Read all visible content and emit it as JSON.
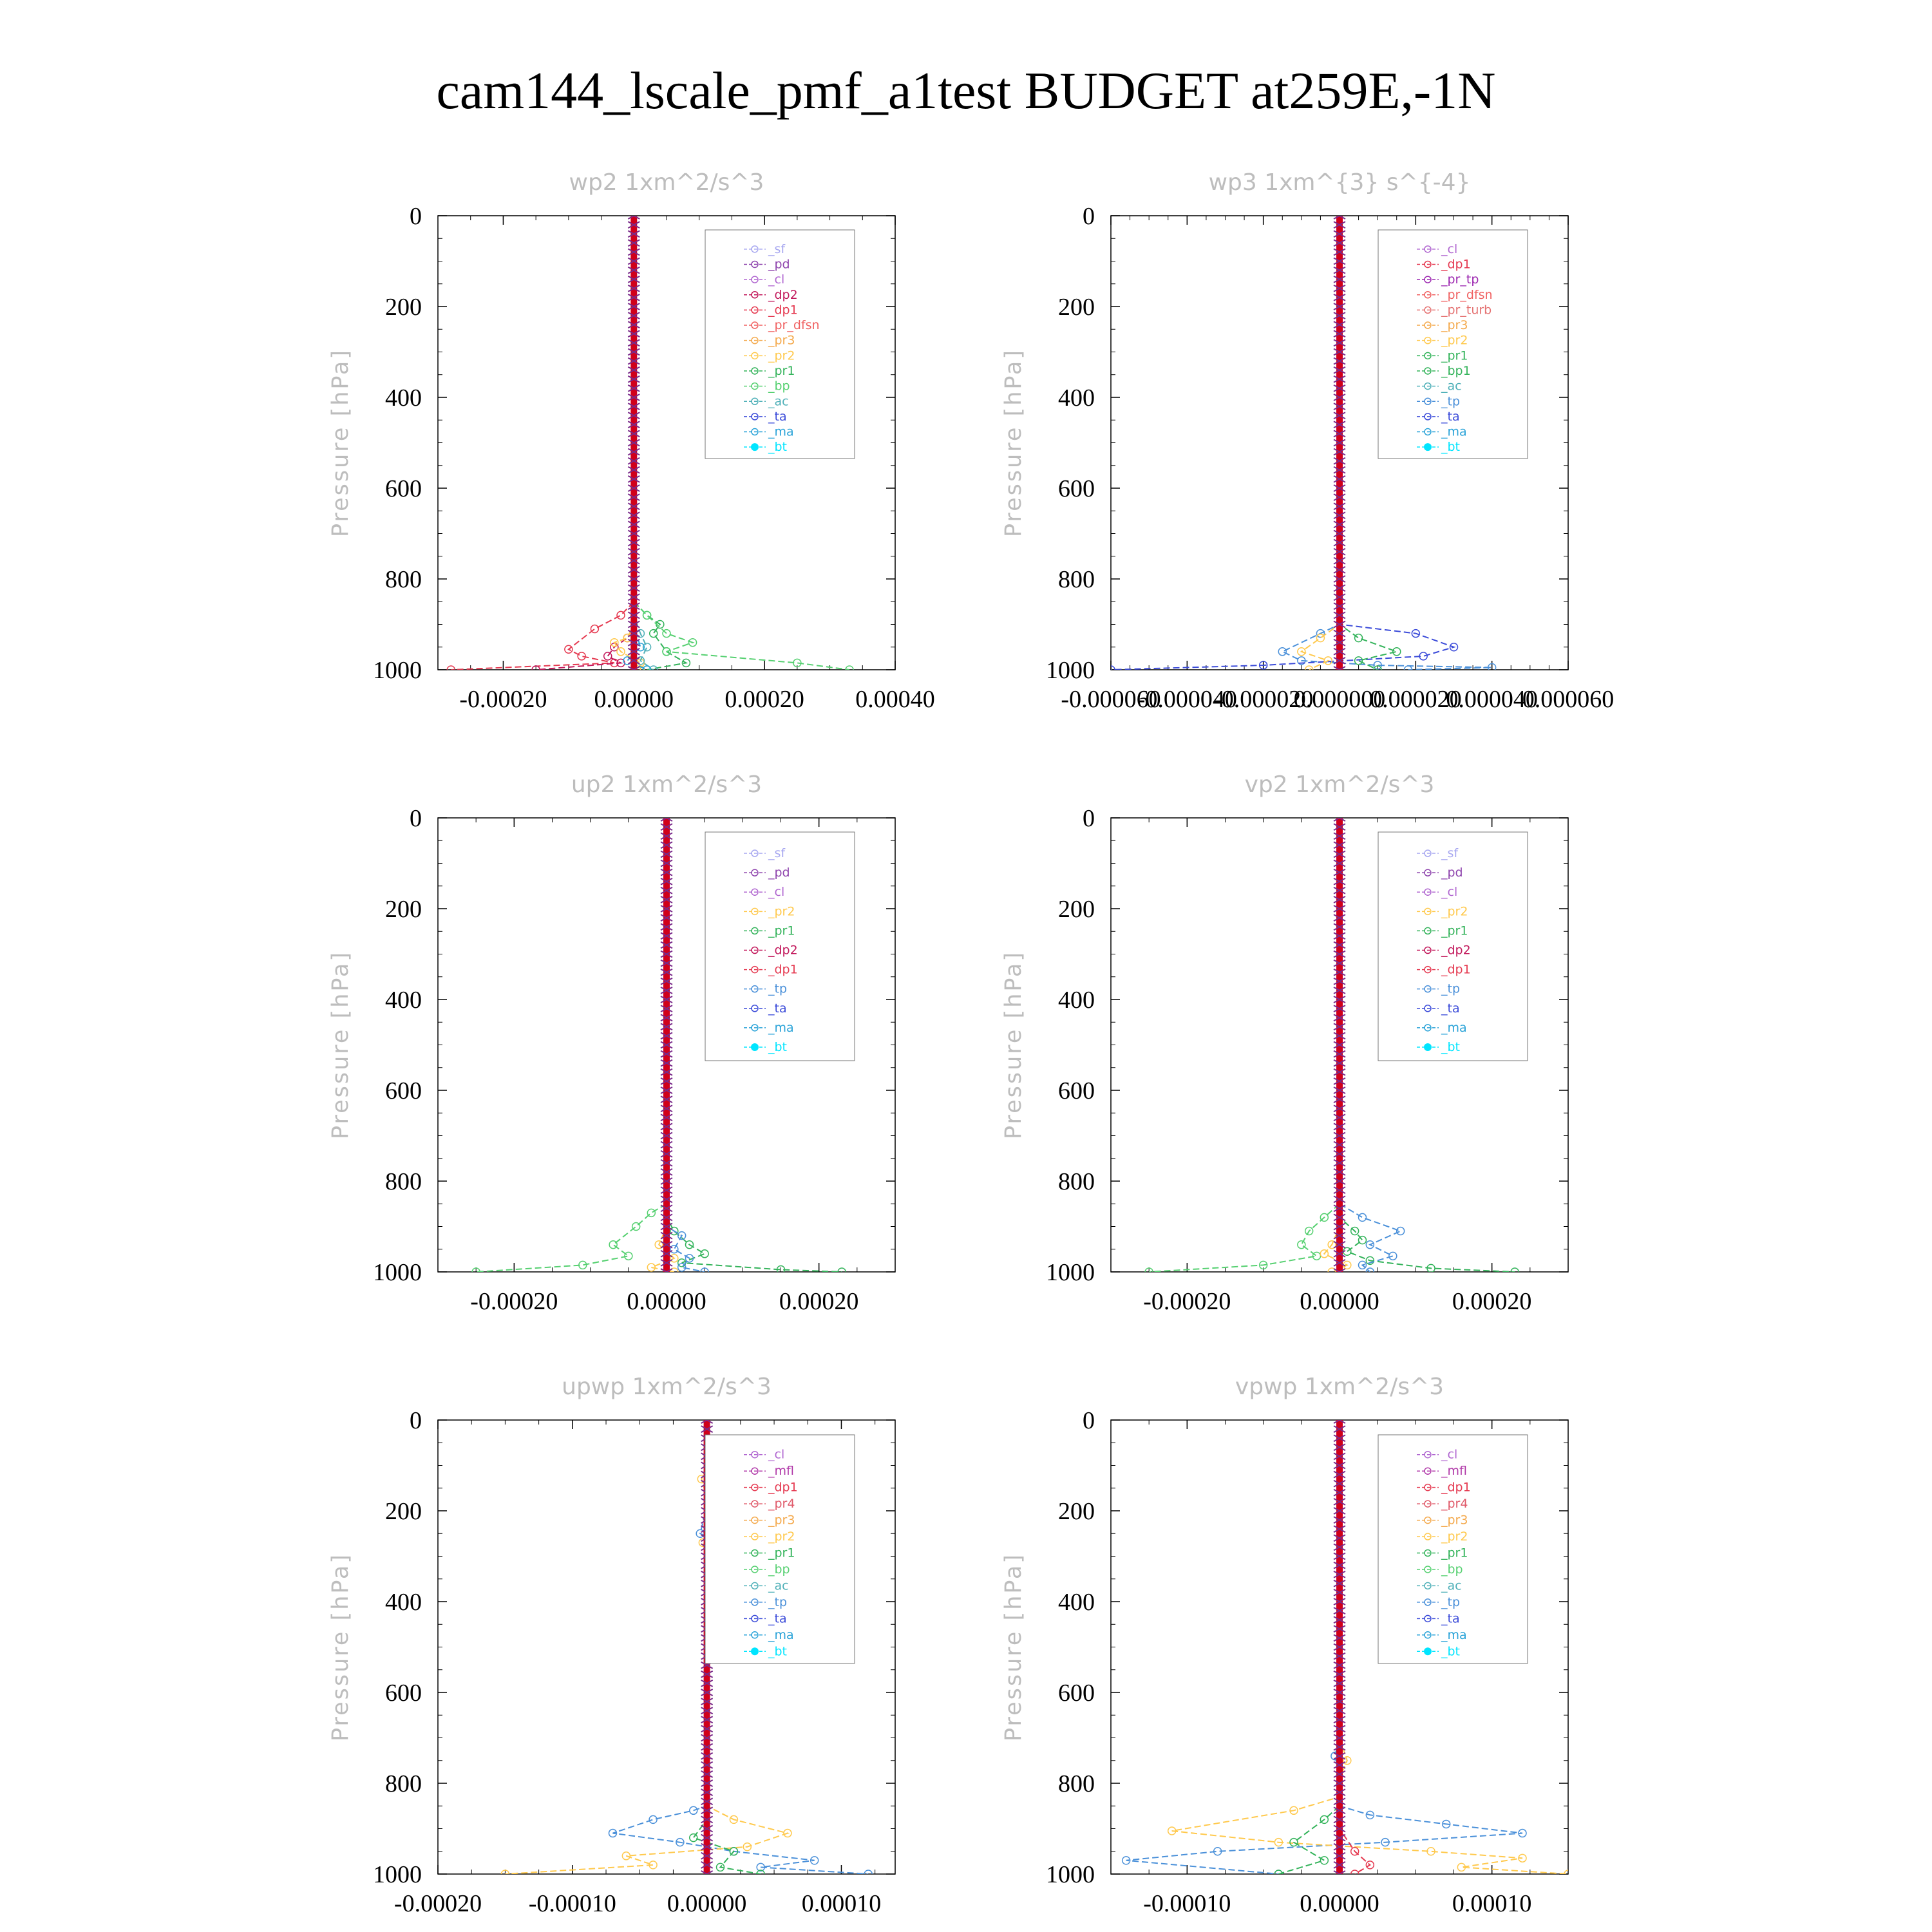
{
  "title": "cam144_lscale_pmf_a1test  BUDGET at259E,-1N",
  "ylabel": "Pressure [hPa]",
  "colors": {
    "sf": "#a7a7f0",
    "pd": "#8e44ad",
    "cl": "#b066d0",
    "mfl": "#b038a8",
    "dp2": "#c2185b",
    "dp1": "#e53950",
    "pr_dfsn": "#f06262",
    "pr_tp": "#9c27b0",
    "pr_turb": "#e57373",
    "pr4": "#e05a6a",
    "pr3": "#f4a94c",
    "pr2": "#ffc94d",
    "pr1": "#33b35a",
    "bp": "#55d070",
    "bp1": "#33b35a",
    "ac": "#4fb0b8",
    "tp": "#4a90d9",
    "ta": "#3b4bd9",
    "ma": "#2aa3d8",
    "bt": "#00e5ff",
    "red": "#d0001b",
    "axis": "#000000",
    "title_gray": "#bdbdbd"
  },
  "chart_data": [
    {
      "type": "line",
      "title": "wp2   1xm^2/s^3",
      "xlim": [
        -0.0003,
        0.0004
      ],
      "xticks": [
        -0.0002,
        0.0,
        0.0002,
        0.0004
      ],
      "xtick_labels": [
        "-0.00020",
        "0.00000",
        "0.00020",
        "0.00040"
      ],
      "ylim": [
        0,
        1000
      ],
      "yticks": [
        0,
        200,
        400,
        600,
        800,
        1000
      ],
      "ytick_labels": [
        "0",
        "200",
        "400",
        "600",
        "800",
        "1000"
      ],
      "legend": [
        "_sf",
        "_pd",
        "_cl",
        "_dp2",
        "_dp1",
        "_pr_dfsn",
        "_pr3",
        "_pr2",
        "_pr1",
        "_bp",
        "_ac",
        "_ta",
        "_ma",
        "_bt"
      ],
      "series": [
        {
          "name": "_dp1",
          "color_key": "dp1",
          "x": [
            0,
            0,
            -2e-05,
            -6e-05,
            -0.0001,
            -8e-05,
            -3e-05,
            -0.00028
          ],
          "y": [
            0,
            850,
            880,
            910,
            955,
            970,
            985,
            1000
          ]
        },
        {
          "name": "_dp2",
          "color_key": "dp2",
          "x": [
            0,
            0,
            -1e-05,
            -3e-05,
            -4e-05,
            -2e-05,
            -0.00015
          ],
          "y": [
            0,
            900,
            930,
            950,
            970,
            985,
            1000
          ]
        },
        {
          "name": "_pr2",
          "color_key": "pr2",
          "x": [
            0,
            0,
            -1e-05,
            -3e-05,
            -2e-05,
            1e-05,
            1e-05
          ],
          "y": [
            0,
            900,
            930,
            940,
            960,
            985,
            1000
          ]
        },
        {
          "name": "_pr1",
          "color_key": "pr1",
          "x": [
            0,
            0,
            2e-05,
            4e-05,
            3e-05,
            5e-05,
            8e-05,
            2e-05
          ],
          "y": [
            0,
            850,
            880,
            900,
            920,
            960,
            985,
            1000
          ]
        },
        {
          "name": "_bp",
          "color_key": "bp",
          "x": [
            0,
            0,
            2e-05,
            5e-05,
            9e-05,
            5e-05,
            0.00025,
            0.00033
          ],
          "y": [
            0,
            850,
            880,
            920,
            940,
            960,
            985,
            1000
          ]
        },
        {
          "name": "_ac",
          "color_key": "ac",
          "x": [
            0,
            0,
            1e-05,
            2e-05,
            1e-05,
            3e-05
          ],
          "y": [
            0,
            880,
            920,
            950,
            980,
            1000
          ]
        },
        {
          "name": "_ma",
          "color_key": "ma",
          "x": [
            0,
            0,
            1e-05,
            -1e-05,
            2e-05
          ],
          "y": [
            0,
            900,
            950,
            980,
            1000
          ]
        },
        {
          "name": "_bt",
          "color_key": "red",
          "x": [
            0,
            0
          ],
          "y": [
            0,
            1000
          ]
        }
      ]
    },
    {
      "type": "line",
      "title": "wp3   1xm^{3} s^{-4}",
      "xlim": [
        -6e-05,
        6e-05
      ],
      "xticks": [
        -6e-05,
        -4e-05,
        -2e-05,
        0.0,
        2e-05,
        4e-05,
        6e-05
      ],
      "xtick_labels": [
        "-0.000060",
        "-0.000040",
        "-0.000020",
        "0.000000",
        "0.000020",
        "0.000040",
        "0.000060"
      ],
      "ylim": [
        0,
        1000
      ],
      "yticks": [
        0,
        200,
        400,
        600,
        800,
        1000
      ],
      "ytick_labels": [
        "0",
        "200",
        "400",
        "600",
        "800",
        "1000"
      ],
      "legend": [
        "_cl",
        "_dp1",
        "_pr_tp",
        "_pr_dfsn",
        "_pr_turb",
        "_pr3",
        "_pr2",
        "_pr1",
        "_bp1",
        "_ac",
        "_tp",
        "_ta",
        "_ma",
        "_bt"
      ],
      "series": [
        {
          "name": "_tp",
          "color_key": "tp",
          "x": [
            0,
            0,
            -5e-06,
            -1.5e-05,
            -1e-05,
            1e-05,
            4e-05,
            1.8e-05
          ],
          "y": [
            0,
            900,
            920,
            960,
            980,
            990,
            995,
            1000
          ]
        },
        {
          "name": "_ta",
          "color_key": "ta",
          "x": [
            0,
            0,
            2e-05,
            3e-05,
            2.2e-05,
            -2e-05,
            -6e-05
          ],
          "y": [
            0,
            900,
            920,
            950,
            970,
            990,
            1000
          ]
        },
        {
          "name": "_pr1",
          "color_key": "pr1",
          "x": [
            0,
            0,
            5e-06,
            1.5e-05,
            5e-06,
            1e-05
          ],
          "y": [
            0,
            900,
            930,
            960,
            980,
            1000
          ]
        },
        {
          "name": "_pr2",
          "color_key": "pr2",
          "x": [
            0,
            0,
            -5e-06,
            -1e-05,
            -3e-06,
            -8e-06
          ],
          "y": [
            0,
            900,
            930,
            960,
            980,
            1000
          ]
        },
        {
          "name": "_bt",
          "color_key": "red",
          "x": [
            0,
            0
          ],
          "y": [
            0,
            1000
          ]
        }
      ]
    },
    {
      "type": "line",
      "title": "up2   1xm^2/s^3",
      "xlim": [
        -0.0003,
        0.0003
      ],
      "xticks": [
        -0.0002,
        0.0,
        0.0002
      ],
      "xtick_labels": [
        "-0.00020",
        "0.00000",
        "0.00020"
      ],
      "ylim": [
        0,
        1000
      ],
      "yticks": [
        0,
        200,
        400,
        600,
        800,
        1000
      ],
      "ytick_labels": [
        "0",
        "200",
        "400",
        "600",
        "800",
        "1000"
      ],
      "legend": [
        "_sf",
        "_pd",
        "_cl",
        "_pr2",
        "_pr1",
        "_dp2",
        "_dp1",
        "_tp",
        "_ta",
        "_ma",
        "_bt"
      ],
      "series": [
        {
          "name": "_dp1",
          "color_key": "bp",
          "x": [
            0,
            0,
            -2e-05,
            -4e-05,
            -7e-05,
            -5e-05,
            -0.00011,
            -0.00025
          ],
          "y": [
            0,
            850,
            870,
            900,
            940,
            965,
            985,
            1000
          ]
        },
        {
          "name": "_dp2",
          "color_key": "pr1",
          "x": [
            0,
            0,
            1e-05,
            3e-05,
            5e-05,
            2e-05,
            0.00015,
            0.00023
          ],
          "y": [
            0,
            880,
            910,
            940,
            960,
            980,
            995,
            1000
          ]
        },
        {
          "name": "_tp",
          "color_key": "tp",
          "x": [
            0,
            0,
            2e-05,
            1e-05,
            3e-05,
            2e-05,
            5e-05
          ],
          "y": [
            0,
            900,
            920,
            950,
            970,
            990,
            1000
          ]
        },
        {
          "name": "_pr1",
          "color_key": "pr2",
          "x": [
            0,
            0,
            -1e-05,
            1e-05,
            -2e-05,
            1e-05
          ],
          "y": [
            0,
            900,
            940,
            970,
            990,
            1000
          ]
        },
        {
          "name": "_bt",
          "color_key": "red",
          "x": [
            0,
            0
          ],
          "y": [
            0,
            1000
          ]
        }
      ]
    },
    {
      "type": "line",
      "title": "vp2   1xm^2/s^3",
      "xlim": [
        -0.0003,
        0.0003
      ],
      "xticks": [
        -0.0002,
        0.0,
        0.0002
      ],
      "xtick_labels": [
        "-0.00020",
        "0.00000",
        "0.00020"
      ],
      "ylim": [
        0,
        1000
      ],
      "yticks": [
        0,
        200,
        400,
        600,
        800,
        1000
      ],
      "ytick_labels": [
        "0",
        "200",
        "400",
        "600",
        "800",
        "1000"
      ],
      "legend": [
        "_sf",
        "_pd",
        "_cl",
        "_pr2",
        "_pr1",
        "_dp2",
        "_dp1",
        "_tp",
        "_ta",
        "_ma",
        "_bt"
      ],
      "series": [
        {
          "name": "_dp1",
          "color_key": "bp",
          "x": [
            0,
            0,
            -2e-05,
            -4e-05,
            -5e-05,
            -3e-05,
            -0.0001,
            -0.00025
          ],
          "y": [
            0,
            850,
            880,
            910,
            940,
            965,
            985,
            1000
          ]
        },
        {
          "name": "_dp2",
          "color_key": "pr1",
          "x": [
            0,
            0,
            2e-05,
            3e-05,
            1e-05,
            4e-05,
            0.00012,
            0.00023
          ],
          "y": [
            0,
            880,
            910,
            930,
            955,
            975,
            992,
            1000
          ]
        },
        {
          "name": "_tp",
          "color_key": "tp",
          "x": [
            0,
            0,
            3e-05,
            8e-05,
            4e-05,
            7e-05,
            3e-05,
            4e-05
          ],
          "y": [
            0,
            850,
            880,
            910,
            940,
            965,
            985,
            1000
          ]
        },
        {
          "name": "_pr1",
          "color_key": "pr2",
          "x": [
            0,
            0,
            -1e-05,
            -2e-05,
            1e-05,
            -1e-05
          ],
          "y": [
            0,
            900,
            940,
            960,
            985,
            1000
          ]
        },
        {
          "name": "_bt",
          "color_key": "red",
          "x": [
            0,
            0
          ],
          "y": [
            0,
            1000
          ]
        }
      ]
    },
    {
      "type": "line",
      "title": "upwp   1xm^2/s^3",
      "xlim": [
        -0.0002,
        0.00014
      ],
      "xticks": [
        -0.0002,
        -0.0001,
        0.0,
        0.0001
      ],
      "xtick_labels": [
        "-0.00020",
        "-0.00010",
        "0.00000",
        "0.00010"
      ],
      "ylim": [
        0,
        1000
      ],
      "yticks": [
        0,
        200,
        400,
        600,
        800,
        1000
      ],
      "ytick_labels": [
        "0",
        "200",
        "400",
        "600",
        "800",
        "1000"
      ],
      "legend": [
        "_cl",
        "_mfl",
        "_dp1",
        "_pr4",
        "_pr3",
        "_pr2",
        "_pr1",
        "_bp",
        "_ac",
        "_tp",
        "_ta",
        "_ma",
        "_bt"
      ],
      "series": [
        {
          "name": "_tp",
          "color_key": "tp",
          "x": [
            0,
            0,
            5e-06,
            -5e-06,
            3e-06,
            0,
            0,
            -1e-05,
            -4e-05,
            -7e-05,
            -2e-05,
            2e-05,
            8e-05,
            4e-05,
            0.00012
          ],
          "y": [
            0,
            100,
            130,
            250,
            260,
            270,
            850,
            860,
            880,
            910,
            930,
            950,
            970,
            985,
            1000
          ]
        },
        {
          "name": "_pr1",
          "color_key": "pr2",
          "x": [
            0,
            0,
            -4e-06,
            8e-06,
            -3e-06,
            0,
            0,
            2e-05,
            6e-05,
            3e-05,
            -6e-05,
            -4e-05,
            -0.00015
          ],
          "y": [
            0,
            100,
            130,
            250,
            270,
            300,
            850,
            880,
            910,
            940,
            960,
            980,
            1000
          ]
        },
        {
          "name": "_bp",
          "color_key": "pr1",
          "x": [
            0,
            0,
            -1e-05,
            2e-05,
            1e-05,
            4e-05
          ],
          "y": [
            0,
            880,
            920,
            950,
            985,
            1000
          ]
        },
        {
          "name": "_bt",
          "color_key": "red",
          "x": [
            0,
            0
          ],
          "y": [
            0,
            1000
          ]
        }
      ]
    },
    {
      "type": "line",
      "title": "vpwp   1xm^2/s^3",
      "xlim": [
        -0.00015,
        0.00015
      ],
      "xticks": [
        -0.0001,
        0.0,
        0.0001
      ],
      "xtick_labels": [
        "-0.00010",
        "0.00000",
        "0.00010"
      ],
      "ylim": [
        0,
        1000
      ],
      "yticks": [
        0,
        200,
        400,
        600,
        800,
        1000
      ],
      "ytick_labels": [
        "0",
        "200",
        "400",
        "600",
        "800",
        "1000"
      ],
      "legend": [
        "_cl",
        "_mfl",
        "_dp1",
        "_pr4",
        "_pr3",
        "_pr2",
        "_pr1",
        "_bp",
        "_ac",
        "_tp",
        "_ta",
        "_ma",
        "_bt"
      ],
      "series": [
        {
          "name": "_tp",
          "color_key": "tp",
          "x": [
            0,
            0,
            -3e-06,
            0,
            0,
            2e-05,
            7e-05,
            0.00012,
            3e-05,
            -8e-05,
            -0.00014,
            -4e-05
          ],
          "y": [
            0,
            700,
            740,
            780,
            850,
            870,
            890,
            910,
            930,
            950,
            970,
            1000
          ]
        },
        {
          "name": "_pr1",
          "color_key": "pr2",
          "x": [
            0,
            0,
            5e-06,
            0,
            0,
            -3e-05,
            -0.00011,
            -4e-05,
            6e-05,
            0.00012,
            8e-05,
            0.00015
          ],
          "y": [
            0,
            700,
            750,
            790,
            830,
            860,
            905,
            930,
            950,
            965,
            985,
            1000
          ]
        },
        {
          "name": "_bp",
          "color_key": "pr1",
          "x": [
            0,
            0,
            -1e-05,
            -3e-05,
            -1e-05,
            -4e-05
          ],
          "y": [
            0,
            850,
            880,
            930,
            970,
            1000
          ]
        },
        {
          "name": "_dp1",
          "color_key": "dp1",
          "x": [
            0,
            0,
            1e-05,
            2e-05,
            1e-05
          ],
          "y": [
            0,
            900,
            950,
            980,
            1000
          ]
        },
        {
          "name": "_bt",
          "color_key": "red",
          "x": [
            0,
            0
          ],
          "y": [
            0,
            1000
          ]
        }
      ]
    }
  ]
}
